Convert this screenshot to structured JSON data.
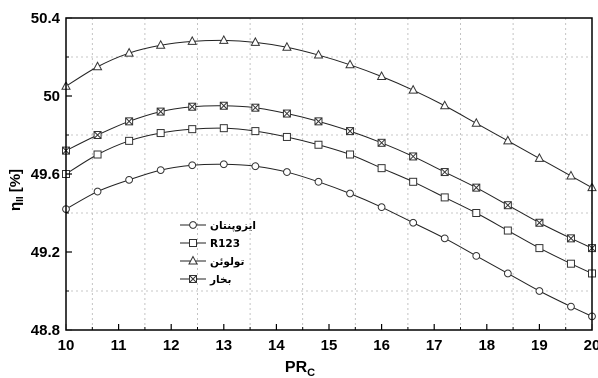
{
  "chart_data": {
    "type": "line",
    "xlabel": "PR",
    "xlabel_sub": "C",
    "ylabel": "η",
    "ylabel_sub": "II",
    "ylabel_unit": "[%]",
    "xlim": [
      10,
      20
    ],
    "ylim": [
      48.8,
      50.4
    ],
    "x_ticks": [
      10,
      11,
      12,
      13,
      14,
      15,
      16,
      17,
      18,
      19,
      20
    ],
    "y_ticks": [
      48.8,
      49.2,
      49.6,
      50,
      50.4
    ],
    "y_tick_labels": [
      "48.8",
      "49.2",
      "49.6",
      "50",
      "50.4"
    ],
    "grid": true,
    "legend_position": "lower-left",
    "series": [
      {
        "name": "ایزوپنتان",
        "marker": "circle",
        "x": [
          10,
          10.6,
          11.2,
          11.8,
          12.4,
          13.0,
          13.6,
          14.2,
          14.8,
          15.4,
          16.0,
          16.6,
          17.2,
          17.8,
          18.4,
          19.0,
          19.6,
          20
        ],
        "y": [
          49.42,
          49.51,
          49.57,
          49.62,
          49.645,
          49.65,
          49.64,
          49.61,
          49.56,
          49.5,
          49.43,
          49.35,
          49.27,
          49.18,
          49.09,
          49.0,
          48.92,
          48.87
        ]
      },
      {
        "name": "R123",
        "marker": "square",
        "x": [
          10,
          10.6,
          11.2,
          11.8,
          12.4,
          13.0,
          13.6,
          14.2,
          14.8,
          15.4,
          16.0,
          16.6,
          17.2,
          17.8,
          18.4,
          19.0,
          19.6,
          20
        ],
        "y": [
          49.6,
          49.7,
          49.77,
          49.81,
          49.83,
          49.835,
          49.82,
          49.79,
          49.75,
          49.7,
          49.63,
          49.56,
          49.48,
          49.4,
          49.31,
          49.22,
          49.14,
          49.09
        ]
      },
      {
        "name": "تولوئن",
        "marker": "triangle",
        "x": [
          10,
          10.6,
          11.2,
          11.8,
          12.4,
          13.0,
          13.6,
          14.2,
          14.8,
          15.4,
          16.0,
          16.6,
          17.2,
          17.8,
          18.4,
          19.0,
          19.6,
          20
        ],
        "y": [
          50.05,
          50.15,
          50.22,
          50.26,
          50.28,
          50.285,
          50.275,
          50.25,
          50.21,
          50.16,
          50.1,
          50.03,
          49.95,
          49.86,
          49.77,
          49.68,
          49.59,
          49.53
        ]
      },
      {
        "name": "بخار",
        "marker": "cross-box",
        "x": [
          10,
          10.6,
          11.2,
          11.8,
          12.4,
          13.0,
          13.6,
          14.2,
          14.8,
          15.4,
          16.0,
          16.6,
          17.2,
          17.8,
          18.4,
          19.0,
          19.6,
          20
        ],
        "y": [
          49.72,
          49.8,
          49.87,
          49.92,
          49.945,
          49.95,
          49.94,
          49.91,
          49.87,
          49.82,
          49.76,
          49.69,
          49.61,
          49.53,
          49.44,
          49.35,
          49.27,
          49.22
        ]
      }
    ]
  }
}
